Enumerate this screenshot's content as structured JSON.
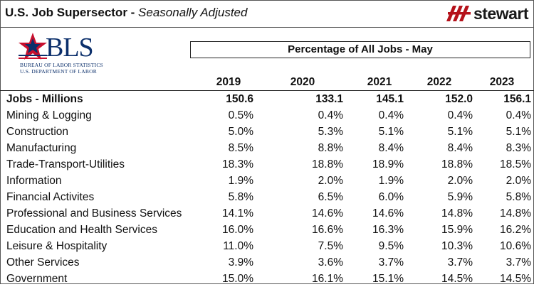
{
  "header": {
    "title_bold": "U.S. Job Supersector - ",
    "title_italic": "Seasonally Adjusted",
    "brand": "stewart"
  },
  "bls": {
    "name": "BLS",
    "line1": "BUREAU OF LABOR STATISTICS",
    "line2": "U.S. DEPARTMENT OF LABOR"
  },
  "table": {
    "caption": "Percentage of All Jobs - May",
    "years": [
      "2019",
      "2020",
      "2021",
      "2022",
      "2023"
    ],
    "jobs_row": {
      "label": "Jobs - Millions",
      "values": [
        "150.6",
        "133.1",
        "145.1",
        "152.0",
        "156.1"
      ]
    },
    "rows": [
      {
        "label": "Mining & Logging",
        "values": [
          "0.5%",
          "0.4%",
          "0.4%",
          "0.4%",
          "0.4%"
        ]
      },
      {
        "label": "Construction",
        "values": [
          "5.0%",
          "5.3%",
          "5.1%",
          "5.1%",
          "5.1%"
        ]
      },
      {
        "label": "Manufacturing",
        "values": [
          "8.5%",
          "8.8%",
          "8.4%",
          "8.4%",
          "8.3%"
        ]
      },
      {
        "label": "Trade-Transport-Utilities",
        "values": [
          "18.3%",
          "18.8%",
          "18.9%",
          "18.8%",
          "18.5%"
        ]
      },
      {
        "label": "Information",
        "values": [
          "1.9%",
          "2.0%",
          "1.9%",
          "2.0%",
          "2.0%"
        ]
      },
      {
        "label": "Financial Activites",
        "values": [
          "5.8%",
          "6.5%",
          "6.0%",
          "5.9%",
          "5.8%"
        ]
      },
      {
        "label": "Professional and Business Services",
        "values": [
          "14.1%",
          "14.6%",
          "14.6%",
          "14.8%",
          "14.8%"
        ]
      },
      {
        "label": "Education and Health Services",
        "values": [
          "16.0%",
          "16.6%",
          "16.3%",
          "15.9%",
          "16.2%"
        ]
      },
      {
        "label": "Leisure & Hospitality",
        "values": [
          "11.0%",
          "7.5%",
          "9.5%",
          "10.3%",
          "10.6%"
        ]
      },
      {
        "label": "Other Services",
        "values": [
          "3.9%",
          "3.6%",
          "3.7%",
          "3.7%",
          "3.7%"
        ]
      },
      {
        "label": "Government",
        "values": [
          "15.0%",
          "16.1%",
          "15.1%",
          "14.5%",
          "14.5%"
        ]
      }
    ]
  },
  "colors": {
    "brand_red": "#b5121b",
    "bls_blue": "#0b2f6b",
    "star_red": "#c8102e"
  }
}
